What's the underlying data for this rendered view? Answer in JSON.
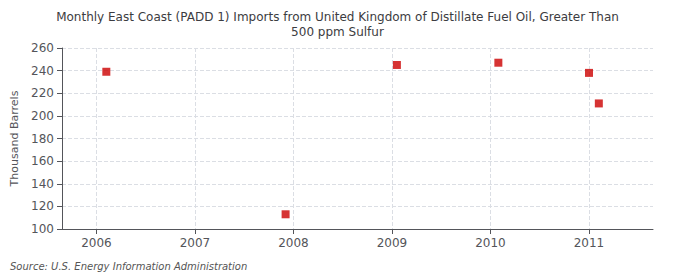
{
  "chart_data": {
    "type": "scatter",
    "title": "Monthly East Coast (PADD 1) Imports from United Kingdom of Distillate Fuel Oil, Greater Than\n500 ppm Sulfur",
    "ylabel": "Thousand Barrels",
    "annotation": "Source: U.S. Energy Information Administration",
    "x": [
      2006.1,
      2007.92,
      2009.05,
      2010.08,
      2011.0,
      2011.1
    ],
    "values": [
      239,
      113,
      245,
      247,
      238,
      211
    ],
    "color": "#cc0000",
    "marker": "square",
    "xlim": [
      2005.65,
      2011.65
    ],
    "xticks": [
      2006,
      2007,
      2008,
      2009,
      2010,
      2011
    ],
    "ylim": [
      100,
      260
    ],
    "yticks": [
      100,
      120,
      140,
      160,
      180,
      200,
      220,
      240,
      260
    ],
    "grid": true
  }
}
